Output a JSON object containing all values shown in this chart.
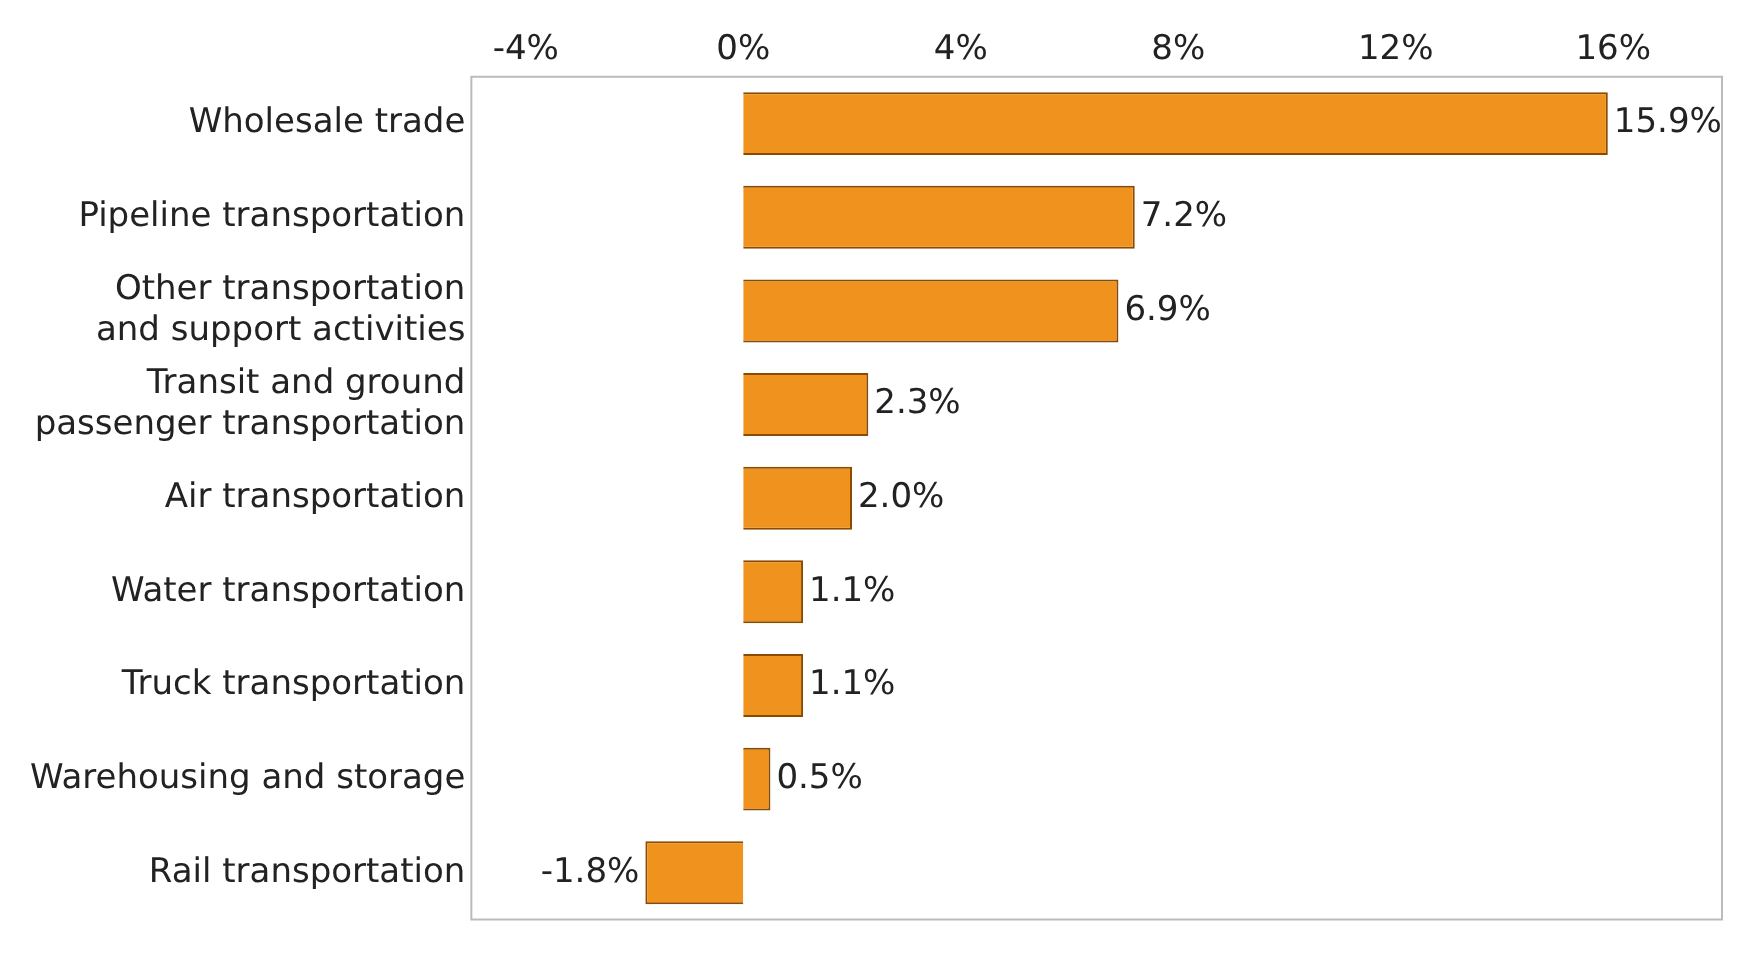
{
  "chart_data": {
    "type": "bar",
    "orientation": "horizontal",
    "categories": [
      "Wholesale trade",
      "Pipeline transportation",
      "Other transportation\nand support activities",
      "Transit and ground\npassenger transportation",
      "Air transportation",
      "Water transportation",
      "Truck transportation",
      "Warehousing and storage",
      "Rail transportation"
    ],
    "values": [
      15.9,
      7.2,
      6.9,
      2.3,
      2.0,
      1.1,
      1.1,
      0.5,
      -1.8
    ],
    "value_labels": [
      "15.9%",
      "7.2%",
      "6.9%",
      "2.3%",
      "2.0%",
      "1.1%",
      "1.1%",
      "0.5%",
      "-1.8%"
    ],
    "color": "#f0921e",
    "xlim": [
      -5,
      18
    ],
    "xticks": [
      {
        "value": -4,
        "label": "-4%"
      },
      {
        "value": 0,
        "label": "0%"
      },
      {
        "value": 4,
        "label": "4%"
      },
      {
        "value": 8,
        "label": "8%"
      },
      {
        "value": 12,
        "label": "12%"
      },
      {
        "value": 16,
        "label": "16%"
      }
    ],
    "grid": false,
    "legend": false
  }
}
